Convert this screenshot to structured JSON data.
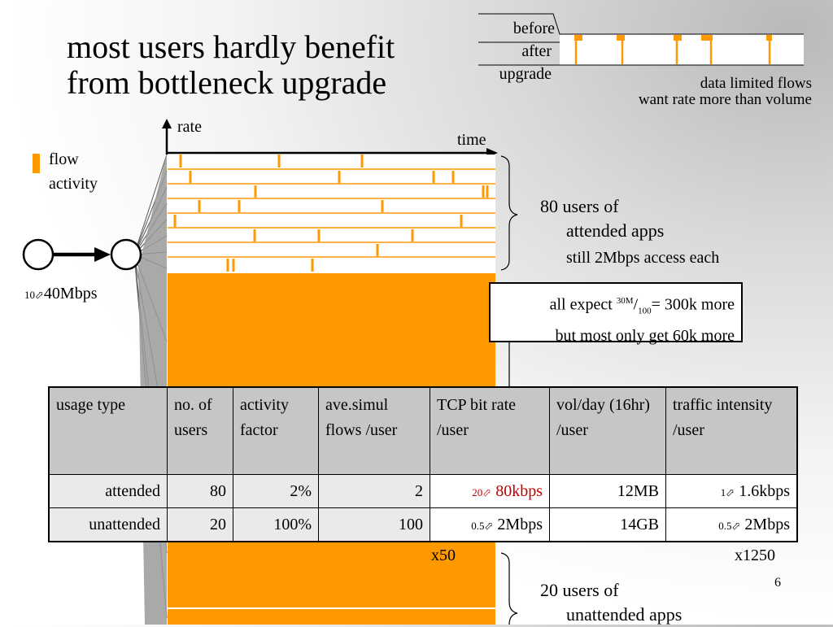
{
  "slide": {
    "title_line1": "most users hardly benefit",
    "title_line2": "from bottleneck upgrade",
    "page_number": "6"
  },
  "legend": {
    "before": "before",
    "after": "after",
    "upgrade": "upgrade"
  },
  "notes": {
    "line1": "data limited flows",
    "line2": "want rate more than volume"
  },
  "axes": {
    "rate": "rate",
    "time": "time"
  },
  "flow_legend": {
    "line1": "flow",
    "line2": "activity",
    "color": "#ff9900"
  },
  "link": {
    "from": "10",
    "to": "40Mbps"
  },
  "attended": {
    "line1": "80 users of",
    "line2": "attended apps",
    "access": "still 2Mbps access each"
  },
  "expectation": {
    "prefix": "all expect ",
    "num": "30M",
    "den": "100",
    "suffix": "= 300k more",
    "line2": "but most only get 60k more"
  },
  "table": {
    "headers": [
      "usage type",
      "no. of users",
      "activity factor",
      "ave.simul flows /user",
      "TCP bit rate /user",
      "vol/day (16hr) /user",
      "traffic intensity /user"
    ],
    "rows": [
      {
        "type": "attended",
        "users": "80",
        "activity": "2%",
        "flows": "2",
        "rate_from": "20",
        "rate_to": "80kbps",
        "vol": "12MB",
        "int_from": "1",
        "int_to": "1.6kbps"
      },
      {
        "type": "unattended",
        "users": "20",
        "activity": "100%",
        "flows": "100",
        "rate_from": "0.5",
        "rate_to": "2Mbps",
        "vol": "14GB",
        "int_from": "0.5",
        "int_to": "2Mbps"
      }
    ]
  },
  "multipliers": {
    "rate": "x50",
    "intensity": "x1250"
  },
  "unattended": {
    "line1": "20 users of",
    "line2": "unattended apps"
  },
  "arrow_glyph": "⬀"
}
